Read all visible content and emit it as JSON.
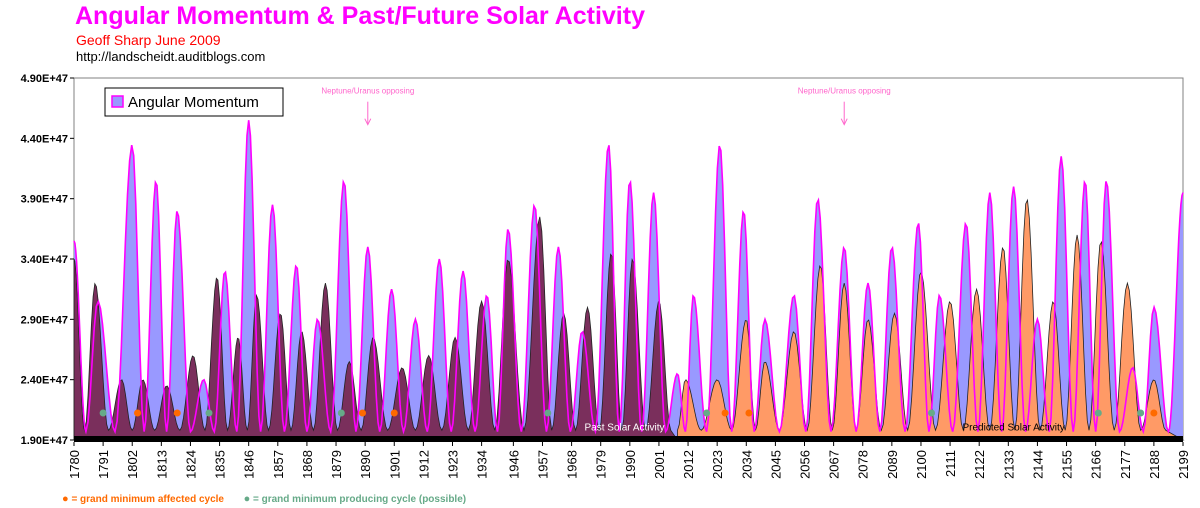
{
  "header": {
    "title": "Angular Momentum & Past/Future Solar Activity",
    "author": "Geoff Sharp   June 2009",
    "url": "http://landscheidt.auditblogs.com"
  },
  "colors": {
    "title": "#ff00ff",
    "author": "#ff0000",
    "momentum_line": "#ff00ff",
    "momentum_fill": "#9999ff",
    "past_fill": "#7a2f5c",
    "predicted_fill": "#ff9a66",
    "affected_dot": "#ff6a00",
    "producing_dot": "#66aa88"
  },
  "chart_data": {
    "type": "area",
    "title": "Angular Momentum & Past/Future Solar Activity",
    "ylim": [
      1.9e+47,
      4.9e+47
    ],
    "xlim": [
      1780,
      2199
    ],
    "y_tick_labels": [
      "4.90E+47",
      "4.40E+47",
      "3.90E+47",
      "3.40E+47",
      "2.90E+47",
      "2.40E+47",
      "1.90E+47"
    ],
    "y_tick_values": [
      4.9e+47,
      4.4e+47,
      3.9e+47,
      3.4e+47,
      2.9e+47,
      2.4e+47,
      1.9e+47
    ],
    "x_tick_labels": [
      "1780",
      "1791",
      "1802",
      "1813",
      "1824",
      "1835",
      "1846",
      "1857",
      "1868",
      "1879",
      "1890",
      "1901",
      "1912",
      "1923",
      "1934",
      "1946",
      "1957",
      "1968",
      "1979",
      "1990",
      "2001",
      "2012",
      "2023",
      "2034",
      "2045",
      "2056",
      "2067",
      "2078",
      "2089",
      "2100",
      "2111",
      "2122",
      "2133",
      "2144",
      "2155",
      "2166",
      "2177",
      "2188",
      "2199"
    ],
    "legend": {
      "label": "Angular Momentum",
      "placement": "top-left"
    },
    "series": [
      {
        "name": "Angular Momentum",
        "peaks": [
          {
            "year": 1780,
            "value": 3.55e+47
          },
          {
            "year": 1789,
            "value": 3.05e+47
          },
          {
            "year": 1802,
            "value": 4.35e+47
          },
          {
            "year": 1811,
            "value": 4.05e+47
          },
          {
            "year": 1819,
            "value": 3.8e+47
          },
          {
            "year": 1829,
            "value": 2.4e+47
          },
          {
            "year": 1837,
            "value": 3.3e+47
          },
          {
            "year": 1846,
            "value": 4.55e+47
          },
          {
            "year": 1855,
            "value": 3.85e+47
          },
          {
            "year": 1864,
            "value": 3.35e+47
          },
          {
            "year": 1872,
            "value": 2.9e+47
          },
          {
            "year": 1882,
            "value": 4.05e+47
          },
          {
            "year": 1891,
            "value": 3.5e+47
          },
          {
            "year": 1900,
            "value": 3.15e+47
          },
          {
            "year": 1909,
            "value": 2.9e+47
          },
          {
            "year": 1918,
            "value": 3.4e+47
          },
          {
            "year": 1927,
            "value": 3.3e+47
          },
          {
            "year": 1936,
            "value": 3.1e+47
          },
          {
            "year": 1944,
            "value": 3.65e+47
          },
          {
            "year": 1954,
            "value": 3.85e+47
          },
          {
            "year": 1963,
            "value": 3.5e+47
          },
          {
            "year": 1972,
            "value": 2.8e+47
          },
          {
            "year": 1982,
            "value": 4.35e+47
          },
          {
            "year": 1990,
            "value": 4.05e+47
          },
          {
            "year": 1999,
            "value": 3.95e+47
          },
          {
            "year": 2008,
            "value": 2.45e+47
          },
          {
            "year": 2014,
            "value": 3.1e+47
          },
          {
            "year": 2024,
            "value": 4.35e+47
          },
          {
            "year": 2033,
            "value": 3.8e+47
          },
          {
            "year": 2041,
            "value": 2.9e+47
          },
          {
            "year": 2052,
            "value": 3.1e+47
          },
          {
            "year": 2061,
            "value": 3.9e+47
          },
          {
            "year": 2071,
            "value": 3.5e+47
          },
          {
            "year": 2080,
            "value": 3.2e+47
          },
          {
            "year": 2089,
            "value": 3.5e+47
          },
          {
            "year": 2099,
            "value": 3.7e+47
          },
          {
            "year": 2107,
            "value": 3.1e+47
          },
          {
            "year": 2117,
            "value": 3.7e+47
          },
          {
            "year": 2126,
            "value": 3.95e+47
          },
          {
            "year": 2135,
            "value": 4e+47
          },
          {
            "year": 2144,
            "value": 2.9e+47
          },
          {
            "year": 2153,
            "value": 4.25e+47
          },
          {
            "year": 2162,
            "value": 4.05e+47
          },
          {
            "year": 2170,
            "value": 4.05e+47
          },
          {
            "year": 2180,
            "value": 2.5e+47
          },
          {
            "year": 2188,
            "value": 3e+47
          },
          {
            "year": 2199,
            "value": 3.95e+47
          }
        ]
      },
      {
        "name": "Past Solar Activity",
        "range": [
          1780,
          2008
        ],
        "peaks": [
          {
            "year": 1780,
            "value": 3.4e+47
          },
          {
            "year": 1788,
            "value": 3.2e+47
          },
          {
            "year": 1798,
            "value": 2.4e+47
          },
          {
            "year": 1806,
            "value": 2.4e+47
          },
          {
            "year": 1815,
            "value": 2.35e+47
          },
          {
            "year": 1825,
            "value": 2.6e+47
          },
          {
            "year": 1834,
            "value": 3.25e+47
          },
          {
            "year": 1842,
            "value": 2.75e+47
          },
          {
            "year": 1849,
            "value": 3.1e+47
          },
          {
            "year": 1858,
            "value": 2.95e+47
          },
          {
            "year": 1866,
            "value": 2.8e+47
          },
          {
            "year": 1875,
            "value": 3.2e+47
          },
          {
            "year": 1884,
            "value": 2.55e+47
          },
          {
            "year": 1893,
            "value": 2.75e+47
          },
          {
            "year": 1904,
            "value": 2.5e+47
          },
          {
            "year": 1914,
            "value": 2.6e+47
          },
          {
            "year": 1924,
            "value": 2.75e+47
          },
          {
            "year": 1934,
            "value": 3.05e+47
          },
          {
            "year": 1944,
            "value": 3.4e+47
          },
          {
            "year": 1956,
            "value": 3.75e+47
          },
          {
            "year": 1965,
            "value": 2.95e+47
          },
          {
            "year": 1974,
            "value": 3e+47
          },
          {
            "year": 1983,
            "value": 3.45e+47
          },
          {
            "year": 1991,
            "value": 3.4e+47
          },
          {
            "year": 2001,
            "value": 3.05e+47
          }
        ]
      },
      {
        "name": "Predicted Solar Activity",
        "range": [
          2008,
          2199
        ],
        "peaks": [
          {
            "year": 2011,
            "value": 2.4e+47
          },
          {
            "year": 2023,
            "value": 2.4e+47
          },
          {
            "year": 2034,
            "value": 2.9e+47
          },
          {
            "year": 2041,
            "value": 2.55e+47
          },
          {
            "year": 2052,
            "value": 2.8e+47
          },
          {
            "year": 2062,
            "value": 3.35e+47
          },
          {
            "year": 2071,
            "value": 3.2e+47
          },
          {
            "year": 2080,
            "value": 2.9e+47
          },
          {
            "year": 2090,
            "value": 2.95e+47
          },
          {
            "year": 2100,
            "value": 3.3e+47
          },
          {
            "year": 2111,
            "value": 3.05e+47
          },
          {
            "year": 2121,
            "value": 3.15e+47
          },
          {
            "year": 2131,
            "value": 3.5e+47
          },
          {
            "year": 2140,
            "value": 3.9e+47
          },
          {
            "year": 2150,
            "value": 3.05e+47
          },
          {
            "year": 2159,
            "value": 3.6e+47
          },
          {
            "year": 2168,
            "value": 3.55e+47
          },
          {
            "year": 2178,
            "value": 3.2e+47
          },
          {
            "year": 2188,
            "value": 2.4e+47
          }
        ]
      }
    ],
    "annotations": [
      {
        "text": "Neptune/Uranus opposing",
        "year": 1891,
        "value": 4.77e+47,
        "arrow": true
      },
      {
        "text": "Neptune/Uranus opposing",
        "year": 2071,
        "value": 4.77e+47,
        "arrow": true
      },
      {
        "text": "Past Solar Activity",
        "year": 1988,
        "value": 1.98e+47
      },
      {
        "text": "Predicted Solar Activity",
        "year": 2135,
        "value": 1.98e+47
      }
    ],
    "affected_dots": [
      1804,
      1819,
      1889,
      1901,
      2026,
      2035,
      2188
    ],
    "producing_dots": [
      1791,
      1831,
      1881,
      1959,
      2019,
      2104,
      2167,
      2183
    ],
    "key": {
      "affected": "= grand minimum affected cycle",
      "producing": "= grand minimum producing cycle (possible)"
    }
  }
}
